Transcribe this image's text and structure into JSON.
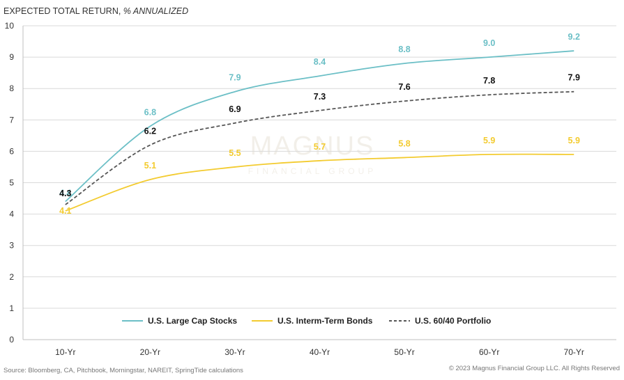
{
  "header": {
    "title_main": "EXPECTED TOTAL RETURN, ",
    "title_italic": "% ANNUALIZED"
  },
  "watermark": {
    "line1": "MAGNUS",
    "line2": "FINANCIAL GROUP"
  },
  "footer": {
    "source": "Source: Bloomberg, CA, Pitchbook, Morningstar, NAREIT, SpringTide calculations",
    "copyright": "© 2023 Magnus Financial Group LLC. All Rights Reserved"
  },
  "chart_data": {
    "type": "line",
    "categories": [
      "10-Yr",
      "20-Yr",
      "30-Yr",
      "40-Yr",
      "50-Yr",
      "60-Yr",
      "70-Yr"
    ],
    "ylim": [
      0,
      10
    ],
    "yticks": [
      0,
      1,
      2,
      3,
      4,
      5,
      6,
      7,
      8,
      9,
      10
    ],
    "grid": true,
    "legend_position": "bottom-inside",
    "series": [
      {
        "name": "U.S. Large Cap Stocks",
        "values": [
          4.4,
          6.8,
          7.9,
          8.4,
          8.8,
          9.0,
          9.2
        ],
        "labels": [
          "4.4",
          "6.8",
          "7.9",
          "8.4",
          "8.8",
          "9.0",
          "9.2"
        ],
        "color": "#6bbfc6",
        "dash": "solid"
      },
      {
        "name": "U.S. Interm-Term Bonds",
        "values": [
          4.1,
          5.1,
          5.5,
          5.7,
          5.8,
          5.9,
          5.9
        ],
        "labels": [
          "4.1",
          "5.1",
          "5.5",
          "5.7",
          "5.8",
          "5.9",
          "5.9"
        ],
        "color": "#f3cb2f",
        "dash": "solid"
      },
      {
        "name": "U.S. 60/40 Portfolio",
        "values": [
          4.3,
          6.2,
          6.9,
          7.3,
          7.6,
          7.8,
          7.9
        ],
        "labels": [
          "4.3",
          "6.2",
          "6.9",
          "7.3",
          "7.6",
          "7.8",
          "7.9"
        ],
        "color": "#555555",
        "label_color": "#111111",
        "dash": "dashed"
      }
    ]
  }
}
